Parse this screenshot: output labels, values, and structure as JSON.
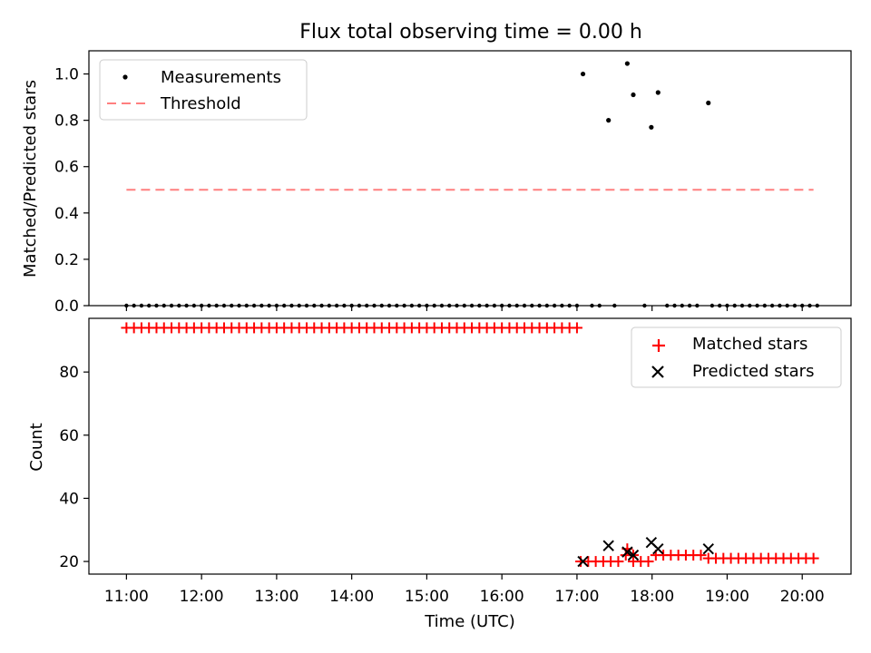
{
  "chart_data": [
    {
      "type": "scatter",
      "title": "Flux total observing time = 0.00 h",
      "xlabel": "",
      "ylabel": "Matched/Predicted stars",
      "xlim": [
        10.5,
        20.65
      ],
      "ylim": [
        0.0,
        1.1
      ],
      "yticks": [
        0.0,
        0.2,
        0.4,
        0.6,
        0.8,
        1.0
      ],
      "ytick_labels": [
        "0.0",
        "0.2",
        "0.4",
        "0.6",
        "0.8",
        "1.0"
      ],
      "legend_position": "top-left",
      "legend": [
        {
          "label": "Measurements",
          "marker": "dot",
          "color": "#000000"
        },
        {
          "label": "Threshold",
          "marker": "dashed-line",
          "color": "#ff7f7f"
        }
      ],
      "threshold": {
        "y": 0.5,
        "x_start": 11.0,
        "x_end": 20.15
      },
      "zero_measurements": {
        "x_start": 11.0,
        "x_end": 20.2,
        "step": 0.1,
        "gaps": [
          [
            17.05,
            17.15
          ],
          [
            17.35,
            17.45
          ],
          [
            17.6,
            17.7
          ],
          [
            17.75,
            17.85
          ],
          [
            17.95,
            18.05
          ],
          [
            18.1,
            18.15
          ],
          [
            18.65,
            18.75
          ]
        ],
        "y": 0.0
      },
      "measurements": [
        {
          "x": 17.08,
          "y": 1.0
        },
        {
          "x": 17.42,
          "y": 0.8
        },
        {
          "x": 17.67,
          "y": 1.045
        },
        {
          "x": 17.75,
          "y": 0.91
        },
        {
          "x": 17.99,
          "y": 0.77
        },
        {
          "x": 18.08,
          "y": 0.92
        },
        {
          "x": 18.75,
          "y": 0.875
        }
      ]
    },
    {
      "type": "scatter",
      "title": "",
      "xlabel": "Time (UTC)",
      "ylabel": "Count",
      "xlim": [
        10.5,
        20.65
      ],
      "ylim": [
        16.0,
        97.0
      ],
      "yticks": [
        20,
        40,
        60,
        80
      ],
      "ytick_labels": [
        "20",
        "40",
        "60",
        "80"
      ],
      "xticks": [
        11,
        12,
        13,
        14,
        15,
        16,
        17,
        18,
        19,
        20
      ],
      "xtick_labels": [
        "11:00",
        "12:00",
        "13:00",
        "14:00",
        "15:00",
        "16:00",
        "17:00",
        "18:00",
        "19:00",
        "20:00"
      ],
      "legend_position": "top-right",
      "legend": [
        {
          "label": "Matched stars",
          "marker": "plus",
          "color": "#ff0000"
        },
        {
          "label": "Predicted stars",
          "marker": "x",
          "color": "#000000"
        }
      ],
      "matched_segments": [
        {
          "x_start": 11.0,
          "x_end": 17.0,
          "step": 0.1,
          "y": 94
        },
        {
          "x_start": 17.05,
          "x_end": 17.55,
          "step": 0.1,
          "y": 20
        },
        {
          "x_start": 17.65,
          "x_end": 17.75,
          "step": 0.1,
          "y": 22
        },
        {
          "x_start": 17.75,
          "x_end": 17.95,
          "step": 0.1,
          "y": 20
        },
        {
          "x_start": 18.05,
          "x_end": 18.65,
          "step": 0.1,
          "y": 22
        },
        {
          "x_start": 18.75,
          "x_end": 20.2,
          "step": 0.1,
          "y": 21
        }
      ],
      "matched_extra": [
        {
          "x": 17.67,
          "y": 24
        }
      ],
      "predicted": [
        {
          "x": 17.08,
          "y": 20
        },
        {
          "x": 17.42,
          "y": 25
        },
        {
          "x": 17.67,
          "y": 23
        },
        {
          "x": 17.75,
          "y": 22
        },
        {
          "x": 17.99,
          "y": 26
        },
        {
          "x": 18.08,
          "y": 24
        },
        {
          "x": 18.75,
          "y": 24
        }
      ]
    }
  ]
}
